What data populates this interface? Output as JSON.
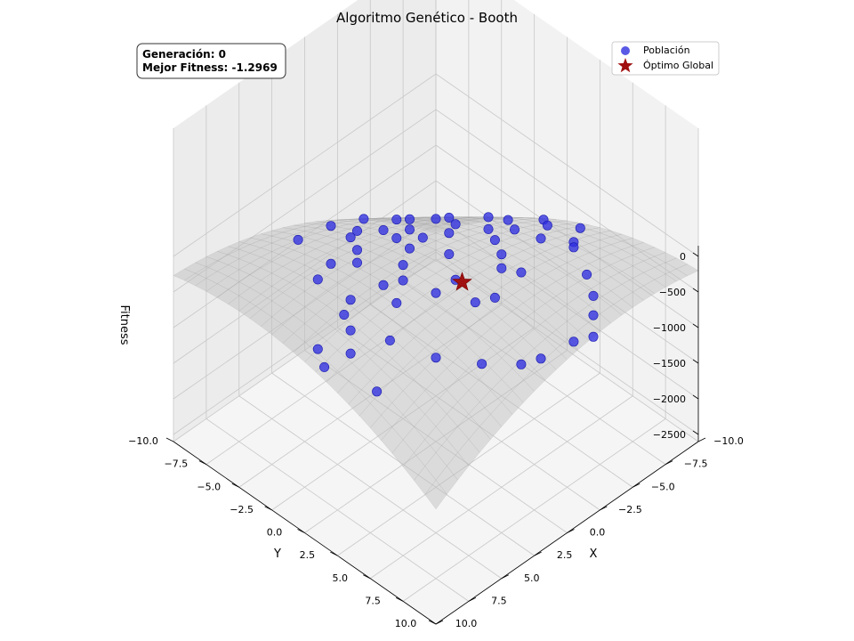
{
  "chart_data": {
    "type": "scatter",
    "title": "Algoritmo Genético - Booth",
    "xlabel": "X",
    "ylabel": "Y",
    "zlabel": "Fitness",
    "xlim": [
      -10,
      10
    ],
    "ylim": [
      -10,
      10
    ],
    "zlim": [
      -2600,
      0
    ],
    "x_ticks": [
      "−10.0",
      "−7.5",
      "−5.0",
      "−2.5",
      "0.0",
      "2.5",
      "5.0",
      "7.5",
      "10.0"
    ],
    "y_ticks": [
      "−10.0",
      "−7.5",
      "−5.0",
      "−2.5",
      "0.0",
      "2.5",
      "5.0",
      "7.5",
      "10.0"
    ],
    "z_ticks": [
      "0",
      "−500",
      "−1000",
      "−1500",
      "−2000",
      "−2500"
    ],
    "grid": true,
    "legend_position": "top-right",
    "info_box": {
      "generation_label": "Generación: 0",
      "best_fitness_label": "Mejor Fitness: -1.2969"
    },
    "surface": {
      "function": "booth",
      "color": "#bdbdbd"
    },
    "series": [
      {
        "name": "Población",
        "color": "#2f2fe0",
        "points": [
          [
            -9.2,
            -1.0
          ],
          [
            -9.0,
            2.0
          ],
          [
            -8.0,
            0.5
          ],
          [
            -7.5,
            -2.0
          ],
          [
            -6.0,
            0.0
          ],
          [
            -5.0,
            -1.0
          ],
          [
            -4.5,
            -3.0
          ],
          [
            -3.0,
            -2.0
          ],
          [
            -1.5,
            -2.5
          ],
          [
            0.0,
            -2.0
          ],
          [
            1.5,
            -1.0
          ],
          [
            2.5,
            0.0
          ],
          [
            3.5,
            -0.5
          ],
          [
            4.0,
            1.0
          ],
          [
            5.5,
            -1.0
          ],
          [
            6.5,
            -0.5
          ],
          [
            7.0,
            0.5
          ],
          [
            8.0,
            1.5
          ],
          [
            9.0,
            0.0
          ],
          [
            -7.0,
            3.5
          ],
          [
            -6.5,
            4.0
          ],
          [
            -5.0,
            6.5
          ],
          [
            -4.0,
            8.0
          ],
          [
            -3.0,
            9.0
          ],
          [
            -2.0,
            10.0
          ],
          [
            -1.0,
            9.5
          ],
          [
            1.0,
            9.0
          ],
          [
            2.0,
            8.5
          ],
          [
            3.5,
            7.0
          ],
          [
            5.0,
            5.0
          ],
          [
            6.0,
            2.5
          ],
          [
            8.5,
            4.0
          ],
          [
            9.5,
            1.0
          ],
          [
            -5.0,
            -5.0
          ],
          [
            -4.0,
            -6.0
          ],
          [
            -3.5,
            -6.5
          ],
          [
            -6.0,
            -5.0
          ],
          [
            -8.0,
            -4.0
          ],
          [
            -2.0,
            -4.0
          ],
          [
            -1.0,
            -5.0
          ],
          [
            0.0,
            -6.0
          ],
          [
            1.0,
            -5.5
          ],
          [
            2.0,
            -4.0
          ],
          [
            3.0,
            -3.0
          ],
          [
            4.0,
            -4.0
          ],
          [
            -0.5,
            -3.5
          ],
          [
            -3.0,
            2.0
          ],
          [
            -2.0,
            3.0
          ],
          [
            -4.0,
            0.5
          ],
          [
            -6.0,
            2.0
          ],
          [
            -2.5,
            4.0
          ],
          [
            0.5,
            2.0
          ],
          [
            0.0,
            4.5
          ],
          [
            1.0,
            4.0
          ],
          [
            2.0,
            2.0
          ],
          [
            -1.0,
            0.0
          ],
          [
            0.0,
            -8.0
          ],
          [
            -3.0,
            -8.5
          ],
          [
            3.0,
            -7.5
          ],
          [
            5.5,
            -3.5
          ]
        ]
      },
      {
        "name": "Óptimo Global",
        "color": "#a01010",
        "points": [
          [
            1.0,
            3.0
          ]
        ]
      }
    ]
  }
}
